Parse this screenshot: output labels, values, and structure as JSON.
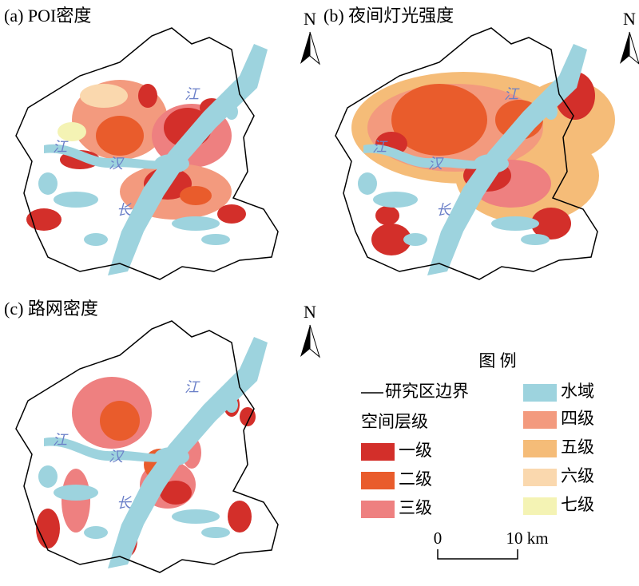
{
  "panels": [
    {
      "title": "(a) POI密度",
      "north": "N",
      "river_labels": [
        "江",
        "江",
        "汉",
        "长"
      ]
    },
    {
      "title": "(b) 夜间灯光强度",
      "north": "N",
      "river_labels": [
        "江",
        "江",
        "汉",
        "长"
      ]
    },
    {
      "title": "(c) 路网密度",
      "north": "N",
      "river_labels": [
        "江",
        "江",
        "汉",
        "长"
      ]
    }
  ],
  "legend": {
    "title": "图 例",
    "boundary": "研究区边界",
    "water": "水域",
    "water_color": "#9dd3de",
    "level_title": "空间层级",
    "levels": [
      {
        "label": "一级",
        "color": "#d32f2a"
      },
      {
        "label": "二级",
        "color": "#e95c2c"
      },
      {
        "label": "三级",
        "color": "#ee8080"
      },
      {
        "label": "四级",
        "color": "#f39a7e"
      },
      {
        "label": "五级",
        "color": "#f5bc78"
      },
      {
        "label": "六级",
        "color": "#fad8ae"
      },
      {
        "label": "七级",
        "color": "#f4f3b4"
      }
    ]
  },
  "scale_bar": {
    "labels": [
      "0",
      "10 km"
    ]
  }
}
